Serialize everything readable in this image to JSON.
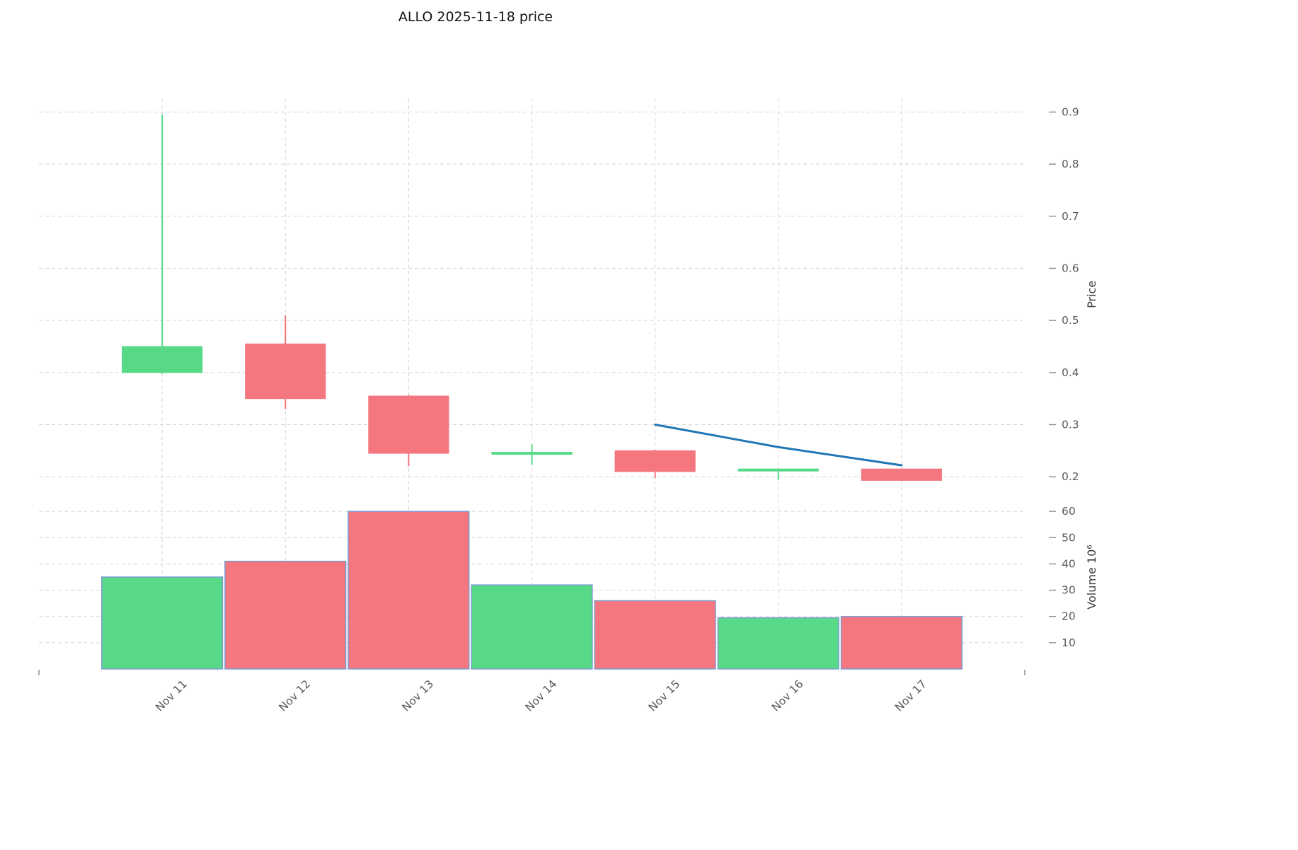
{
  "title": "ALLO  2025-11-18  price",
  "chart_data": {
    "type": "candlestick",
    "categories": [
      "Nov 11",
      "Nov 12",
      "Nov 13",
      "Nov 14",
      "Nov 15",
      "Nov 16",
      "Nov 17"
    ],
    "ohlc": [
      {
        "open": 0.4,
        "high": 0.895,
        "low": 0.398,
        "close": 0.45
      },
      {
        "open": 0.455,
        "high": 0.51,
        "low": 0.33,
        "close": 0.35
      },
      {
        "open": 0.355,
        "high": 0.357,
        "low": 0.22,
        "close": 0.245
      },
      {
        "open": 0.243,
        "high": 0.262,
        "low": 0.223,
        "close": 0.247
      },
      {
        "open": 0.25,
        "high": 0.252,
        "low": 0.197,
        "close": 0.21
      },
      {
        "open": 0.211,
        "high": 0.216,
        "low": 0.194,
        "close": 0.215
      },
      {
        "open": 0.215,
        "high": 0.216,
        "low": 0.192,
        "close": 0.193
      }
    ],
    "volume": [
      35,
      41,
      60,
      32,
      26,
      19.5,
      20
    ],
    "overlay_line": {
      "name": "trend-line",
      "x": [
        4,
        5,
        6
      ],
      "values": [
        0.3,
        0.257,
        0.222
      ],
      "color": "#2077b4"
    },
    "price_axis": {
      "label": "Price",
      "ticks": [
        0.2,
        0.3,
        0.4,
        0.5,
        0.6,
        0.7,
        0.8,
        0.9
      ],
      "range": [
        0.165,
        0.925
      ]
    },
    "volume_axis": {
      "label": "Volume  10⁶",
      "ticks": [
        10,
        20,
        30,
        40,
        50,
        60
      ],
      "range": [
        0,
        63
      ]
    },
    "colors": {
      "up": "#57d987",
      "down": "#f4777f",
      "volume_edge": "#7a9cd0",
      "grid": "#d5d5d5",
      "tick_text": "#595959",
      "title_text": "#141414"
    },
    "layout": {
      "grid": "dashed",
      "legend": "none",
      "volume_panel": "bottom"
    }
  }
}
